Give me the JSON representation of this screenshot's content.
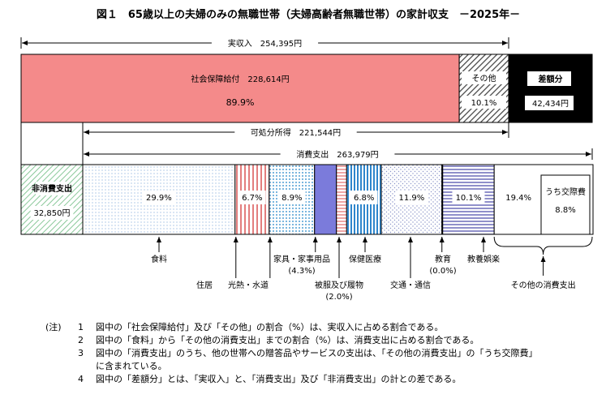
{
  "chart_data": {
    "type": "bar",
    "title": "図１　65歳以上の夫婦のみの無職世帯（夫婦高齢者無職世帯）の家計収支　－2025年－",
    "income": {
      "label": "実収入　254,395円",
      "total": 254395,
      "segments": [
        {
          "name": "社会保障給付　228,614円",
          "value": 228614,
          "pct": "89.9%",
          "color": "#f08080"
        },
        {
          "name": "その他",
          "value": 25781,
          "pct": "10.1%",
          "color": "#555555"
        },
        {
          "name": "差額分",
          "value": 42434,
          "amount": "42,434円",
          "color": "#000000"
        }
      ]
    },
    "disposable": {
      "label": "可処分所得　221,544円",
      "value": 221544
    },
    "consumption": {
      "label": "消費支出　263,979円",
      "value": 263979
    },
    "expenditure": {
      "segments": [
        {
          "name": "非消費支出",
          "value": 32850,
          "amount": "32,850円",
          "pct": "",
          "color": "#8ccf9c"
        },
        {
          "name": "食料",
          "value": 78930,
          "pct": "29.9%",
          "color": "#7fa8d8"
        },
        {
          "name": "住居",
          "value": 17687,
          "pct": "6.7%",
          "color": "#e07070"
        },
        {
          "name": "光熱・水道",
          "value": 23494,
          "pct": "8.9%",
          "color": "#6aaed6"
        },
        {
          "name": "家具・家事用品",
          "sub": "(4.3%)",
          "value": 11351,
          "pct": "",
          "color": "#7b7bdb"
        },
        {
          "name": "被服及び履物",
          "sub": "(2.0%)",
          "value": 5280,
          "pct": "",
          "color": "#e8a0a0"
        },
        {
          "name": "保健医療",
          "value": 17951,
          "pct": "6.8%",
          "color": "#3a8fd0"
        },
        {
          "name": "交通・通信",
          "value": 31413,
          "pct": "11.9%",
          "color": "#9aa6d8"
        },
        {
          "name": "教育",
          "sub": "(0.0%)",
          "value": 0,
          "pct": "",
          "color": "#ffffff"
        },
        {
          "name": "教養娯楽",
          "value": 26662,
          "pct": "10.1%",
          "color": "#7070c0"
        },
        {
          "name": "その他の消費支出",
          "value": 51212,
          "pct": "19.4%",
          "color": "#ffffff"
        }
      ],
      "inner": {
        "name": "うち交際費",
        "pct": "8.8%"
      }
    },
    "notes_head": "(注)",
    "notes": [
      {
        "num": "1",
        "text": "図中の「社会保障給付」及び「その他」の割合（%）は、実収入に占める割合である。"
      },
      {
        "num": "2",
        "text": "図中の「食料」から「その他の消費支出」までの割合（%）は、消費支出に占める割合である。"
      },
      {
        "num": "3",
        "text": "図中の「消費支出」のうち、他の世帯への贈答品やサービスの支出は、「その他の消費支出」の「うち交際費」"
      },
      {
        "num": "",
        "text": "に含まれている。"
      },
      {
        "num": "4",
        "text": "図中の「差額分」とは、「実収入」と、「消費支出」及び「非消費支出」の計との差である。"
      }
    ]
  }
}
